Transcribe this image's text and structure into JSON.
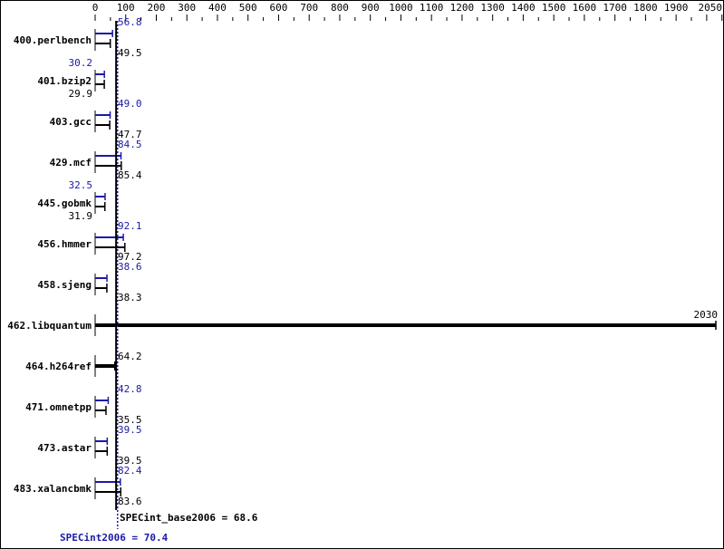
{
  "chart_data": {
    "type": "bar",
    "orientation": "horizontal",
    "xlim": [
      0,
      2050
    ],
    "x_ticks": [
      0,
      100,
      200,
      300,
      400,
      500,
      600,
      700,
      800,
      900,
      1000,
      1100,
      1200,
      1300,
      1400,
      1500,
      1600,
      1700,
      1800,
      1900,
      2000,
      2050
    ],
    "axis_position": "top",
    "grid": false,
    "categories": [
      "400.perlbench",
      "401.bzip2",
      "403.gcc",
      "429.mcf",
      "445.gobmk",
      "456.hmmer",
      "458.sjeng",
      "462.libquantum",
      "464.h264ref",
      "471.omnetpp",
      "473.astar",
      "483.xalancbmk"
    ],
    "series": [
      {
        "name": "SPECint2006",
        "color": "#1a1aa6",
        "values": [
          56.8,
          30.2,
          49.0,
          84.5,
          32.5,
          92.1,
          38.6,
          null,
          null,
          42.8,
          39.5,
          82.4
        ]
      },
      {
        "name": "SPECint_base2006",
        "color": "#000000",
        "values": [
          49.5,
          29.9,
          47.7,
          85.4,
          31.9,
          97.2,
          38.3,
          2030,
          64.2,
          35.5,
          39.5,
          83.6
        ]
      }
    ],
    "value_labels": {
      "peak": [
        "56.8",
        "30.2",
        "49.0",
        "84.5",
        "32.5",
        "92.1",
        "38.6",
        "",
        "",
        "42.8",
        "39.5",
        "82.4"
      ],
      "base": [
        "49.5",
        "29.9",
        "47.7",
        "85.4",
        "31.9",
        "97.2",
        "38.3",
        "2030",
        "64.2",
        "35.5",
        "39.5",
        "83.6"
      ]
    },
    "summary": {
      "base_label": "SPECint_base2006 = 68.6",
      "base_value": 68.6,
      "peak_label": "SPECint2006 = 70.4",
      "peak_value": 70.4
    }
  }
}
